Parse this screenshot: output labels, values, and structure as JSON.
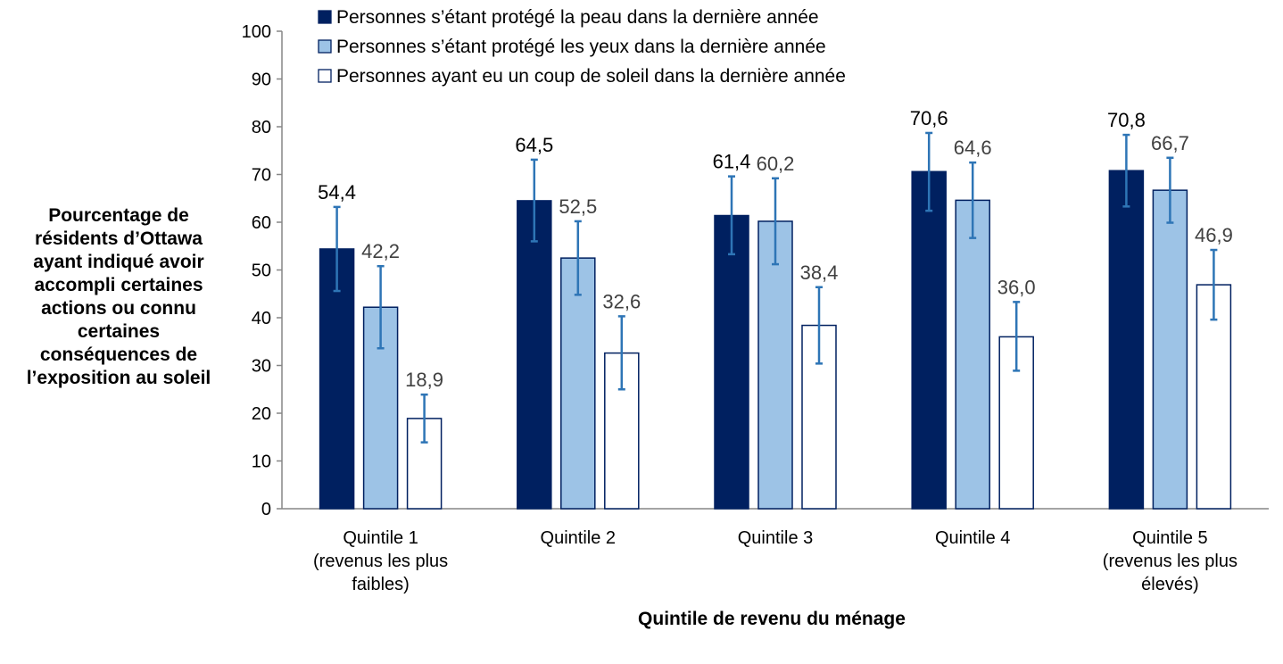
{
  "chart_data": {
    "type": "bar",
    "ylabel_lines": [
      "Pourcentage de",
      "résidents d’Ottawa",
      "ayant indiqué avoir",
      "accompli certaines",
      "actions ou connu",
      "certaines",
      "conséquences de",
      "l’exposition au soleil"
    ],
    "xlabel": "Quintile de revenu du ménage",
    "ylim": [
      0,
      100
    ],
    "yticks": [
      "0",
      "10",
      "20",
      "30",
      "40",
      "50",
      "60",
      "70",
      "80",
      "90",
      "100"
    ],
    "categories": [
      [
        "Quintile 1",
        "(revenus les plus",
        "faibles)"
      ],
      [
        "Quintile 2"
      ],
      [
        "Quintile 3"
      ],
      [
        "Quintile 4"
      ],
      [
        "Quintile 5",
        "(revenus les plus",
        "élevés)"
      ]
    ],
    "legend_position": "top",
    "grid": false,
    "series": [
      {
        "name": "Personnes s’étant protégé la peau dans la dernière année",
        "color": "#002060",
        "label_color": "#000000",
        "values": [
          54.4,
          64.5,
          61.4,
          70.6,
          70.8
        ],
        "labels": [
          "54,4",
          "64,5",
          "61,4",
          "70,6",
          "70,8"
        ],
        "err_low": [
          45.6,
          56.0,
          53.3,
          62.4,
          63.3
        ],
        "err_high": [
          63.2,
          73.1,
          69.6,
          78.7,
          78.3
        ]
      },
      {
        "name": "Personnes s’étant protégé les yeux dans la dernière année",
        "color": "#9DC3E6",
        "label_color": "#404040",
        "values": [
          42.2,
          52.5,
          60.2,
          64.6,
          66.7
        ],
        "labels": [
          "42,2",
          "52,5",
          "60,2",
          "64,6",
          "66,7"
        ],
        "err_low": [
          33.6,
          44.8,
          51.2,
          56.7,
          59.9
        ],
        "err_high": [
          50.8,
          60.2,
          69.2,
          72.5,
          73.5
        ]
      },
      {
        "name": "Personnes ayant eu un coup de soleil dans la dernière année",
        "color": "#FFFFFF",
        "label_color": "#404040",
        "values": [
          18.9,
          32.6,
          38.4,
          36.0,
          46.9
        ],
        "labels": [
          "18,9",
          "32,6",
          "38,4",
          "36,0",
          "46,9"
        ],
        "err_low": [
          13.9,
          25.0,
          30.4,
          28.9,
          39.6
        ],
        "err_high": [
          23.9,
          40.3,
          46.4,
          43.3,
          54.2
        ]
      }
    ],
    "bar_edge_color": "#002060",
    "errorbar_color": "#2E75B6"
  }
}
